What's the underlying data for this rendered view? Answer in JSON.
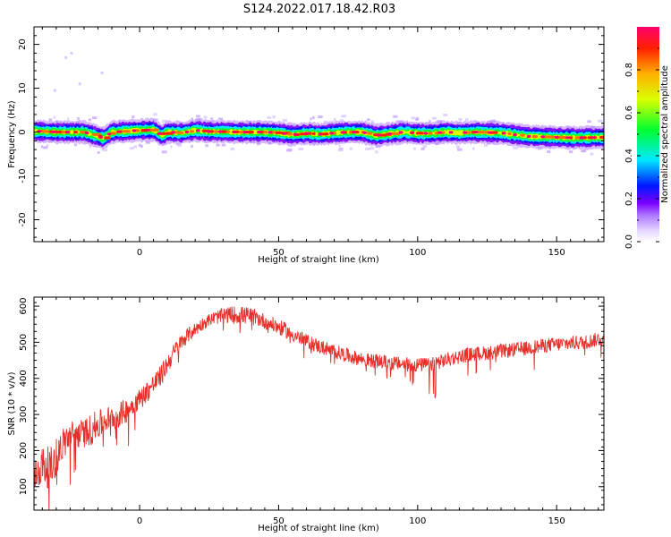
{
  "page": {
    "title": "S124.2022.017.18.42.R03"
  },
  "colors": {
    "snr_line": "#e8302a",
    "axis": "#000000",
    "background": "#ffffff",
    "colormap": [
      "#ffffff",
      "#d8c8ff",
      "#7a00ff",
      "#0018ff",
      "#00e8ff",
      "#00ff30",
      "#d8ff00",
      "#ffb000",
      "#ff2000",
      "#ff0070"
    ]
  },
  "chart_data": [
    {
      "type": "heatmap",
      "title": "S124.2022.017.18.42.R03",
      "xlabel": "Height of straight line (km)",
      "ylabel": "Frequency (Hz)",
      "xlim": [
        -38,
        167
      ],
      "ylim": [
        -25,
        24
      ],
      "xticks": [
        0,
        50,
        100,
        150
      ],
      "xtick_labels": [
        "0",
        "50",
        "100",
        "150"
      ],
      "yticks": [
        20,
        10,
        0,
        -10,
        -20
      ],
      "ytick_labels": [
        "20",
        "10",
        "0",
        "-10",
        "-20"
      ],
      "colorbar": {
        "label": "Normalized spectral amplitude",
        "range": [
          0,
          1
        ],
        "ticks": [
          0,
          0.2,
          0.4,
          0.6,
          0.8
        ],
        "tick_labels": [
          "0.0",
          "0.2",
          "0.4",
          "0.6",
          "0.8"
        ]
      },
      "ridge": {
        "x": [
          -38,
          -30,
          -25,
          -20,
          -15,
          -13,
          -10,
          -5,
          0,
          5,
          8,
          10,
          15,
          20,
          25,
          30,
          35,
          40,
          45,
          50,
          55,
          60,
          65,
          70,
          75,
          80,
          85,
          90,
          95,
          100,
          105,
          110,
          115,
          120,
          125,
          130,
          135,
          140,
          145,
          150,
          155,
          160,
          167
        ],
        "y": [
          0.2,
          0.0,
          0.0,
          0.0,
          -1.0,
          -1.4,
          0.0,
          0.2,
          0.4,
          0.5,
          -0.8,
          0.0,
          -0.2,
          0.4,
          0.1,
          0.1,
          0.0,
          0.0,
          0.0,
          -0.2,
          -0.6,
          -0.3,
          -0.5,
          -0.2,
          0.0,
          0.0,
          -0.8,
          -0.4,
          0.0,
          -0.3,
          -0.3,
          0.0,
          -0.2,
          0.0,
          -0.1,
          -0.2,
          -0.6,
          -1.0,
          -1.1,
          -1.2,
          -1.3,
          -1.3,
          -1.2
        ],
        "peak_points_x": [
          -36,
          -31,
          -26,
          -19,
          -14,
          -11,
          -7,
          -2,
          3,
          7,
          12,
          17,
          21,
          25,
          29,
          34,
          38,
          43,
          47,
          52,
          56,
          60,
          65,
          69,
          73,
          77,
          81,
          86,
          90,
          94,
          98,
          103,
          108,
          112,
          117,
          121,
          126,
          131,
          135,
          140,
          145,
          150,
          154,
          159,
          163
        ]
      },
      "scatter_artifacts": [
        {
          "x": -31,
          "y": 9.5
        },
        {
          "x": -27,
          "y": 17.0
        },
        {
          "x": -25,
          "y": 18.0
        },
        {
          "x": -22,
          "y": 11.0
        },
        {
          "x": -14,
          "y": 13.5
        }
      ]
    },
    {
      "type": "line",
      "xlabel": "Height of straight line (km)",
      "ylabel": "SNR (10 * v/v)",
      "xlim": [
        -38,
        167
      ],
      "ylim": [
        35,
        625
      ],
      "xticks": [
        0,
        50,
        100,
        150
      ],
      "xtick_labels": [
        "0",
        "50",
        "100",
        "150"
      ],
      "yticks": [
        100,
        200,
        300,
        400,
        500,
        600
      ],
      "ytick_labels": [
        "100",
        "200",
        "300",
        "400",
        "500",
        "600"
      ],
      "series": [
        {
          "x": [
            -38,
            -35,
            -32,
            -29,
            -26,
            -23,
            -20,
            -17,
            -14,
            -11,
            -8,
            -5,
            -2,
            1,
            4,
            7,
            10,
            13,
            16,
            19,
            22,
            25,
            28,
            31,
            34,
            37,
            40,
            43,
            46,
            49,
            52,
            55,
            58,
            61,
            64,
            67,
            70,
            73,
            76,
            79,
            82,
            85,
            88,
            91,
            94,
            97,
            100,
            103,
            106,
            109,
            112,
            115,
            118,
            121,
            124,
            127,
            130,
            133,
            136,
            139,
            142,
            145,
            148,
            151,
            154,
            157,
            160,
            163,
            166
          ],
          "y": [
            125,
            160,
            150,
            200,
            235,
            245,
            248,
            260,
            275,
            290,
            295,
            310,
            330,
            350,
            375,
            400,
            440,
            480,
            510,
            530,
            548,
            562,
            570,
            575,
            576,
            575,
            572,
            565,
            555,
            545,
            535,
            522,
            510,
            500,
            490,
            482,
            475,
            468,
            460,
            455,
            450,
            448,
            445,
            442,
            440,
            438,
            437,
            438,
            440,
            448,
            455,
            460,
            465,
            468,
            470,
            472,
            475,
            478,
            480,
            483,
            487,
            490,
            493,
            495,
            497,
            499,
            500,
            505,
            510
          ],
          "noise": [
            45,
            55,
            60,
            50,
            45,
            40,
            40,
            45,
            40,
            35,
            35,
            35,
            30,
            30,
            30,
            30,
            28,
            25,
            22,
            20,
            18,
            18,
            20,
            22,
            25,
            25,
            25,
            22,
            22,
            22,
            22,
            20,
            20,
            20,
            20,
            20,
            20,
            20,
            20,
            20,
            20,
            20,
            20,
            20,
            20,
            20,
            20,
            20,
            20,
            20,
            20,
            20,
            20,
            20,
            20,
            20,
            20,
            20,
            20,
            20,
            20,
            20,
            20,
            20,
            20,
            20,
            20,
            20,
            20
          ]
        }
      ]
    }
  ]
}
